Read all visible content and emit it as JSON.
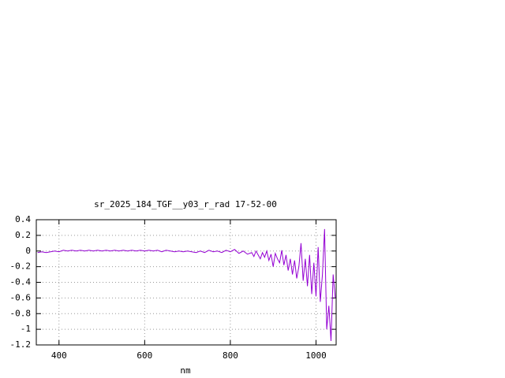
{
  "chart_data": {
    "type": "line",
    "title": "sr_2025_184_TGF__y03_r_rad 17-52-00",
    "x_label": "nm",
    "x": [
      350,
      360,
      370,
      380,
      390,
      400,
      410,
      420,
      430,
      440,
      450,
      460,
      470,
      480,
      490,
      500,
      510,
      520,
      530,
      540,
      550,
      560,
      570,
      580,
      590,
      600,
      610,
      620,
      630,
      640,
      650,
      660,
      670,
      680,
      690,
      700,
      710,
      720,
      730,
      740,
      750,
      760,
      770,
      780,
      790,
      800,
      810,
      820,
      830,
      840,
      850,
      855,
      860,
      865,
      870,
      875,
      880,
      885,
      890,
      895,
      900,
      905,
      910,
      915,
      920,
      925,
      930,
      935,
      940,
      945,
      950,
      955,
      960,
      965,
      970,
      975,
      980,
      985,
      990,
      995,
      1000,
      1005,
      1010,
      1015,
      1020,
      1025,
      1030,
      1035,
      1040,
      1045
    ],
    "values": [
      -0.02,
      -0.01,
      -0.02,
      -0.01,
      0.0,
      -0.01,
      0.01,
      0.0,
      0.01,
      0.0,
      0.01,
      0.0,
      0.01,
      0.0,
      0.01,
      0.0,
      0.01,
      0.0,
      0.01,
      0.0,
      0.01,
      0.0,
      0.01,
      0.0,
      0.01,
      0.0,
      0.01,
      0.0,
      0.01,
      -0.01,
      0.01,
      0.0,
      -0.01,
      0.0,
      -0.01,
      0.0,
      -0.01,
      -0.02,
      0.0,
      -0.02,
      0.01,
      -0.01,
      0.0,
      -0.02,
      0.01,
      -0.01,
      0.02,
      -0.03,
      0.0,
      -0.04,
      -0.02,
      -0.07,
      0.0,
      -0.05,
      -0.1,
      -0.02,
      -0.08,
      0.0,
      -0.12,
      -0.04,
      -0.2,
      -0.03,
      -0.1,
      -0.15,
      0.01,
      -0.18,
      -0.05,
      -0.25,
      -0.1,
      -0.3,
      -0.12,
      -0.35,
      -0.2,
      0.1,
      -0.38,
      -0.1,
      -0.45,
      -0.05,
      -0.55,
      -0.15,
      -0.58,
      0.05,
      -0.65,
      -0.3,
      0.28,
      -1.0,
      -0.7,
      -1.15,
      -0.3,
      -0.6
    ],
    "color": "#9400d3",
    "xlim": [
      347,
      1047
    ],
    "xticks": [
      400,
      600,
      800,
      1000
    ],
    "ylim": [
      -1.2,
      0.4
    ],
    "yticks": [
      0.4,
      0.2,
      0,
      -0.2,
      -0.4,
      -0.6,
      -0.8,
      -1,
      -1.2
    ],
    "grid": true
  }
}
